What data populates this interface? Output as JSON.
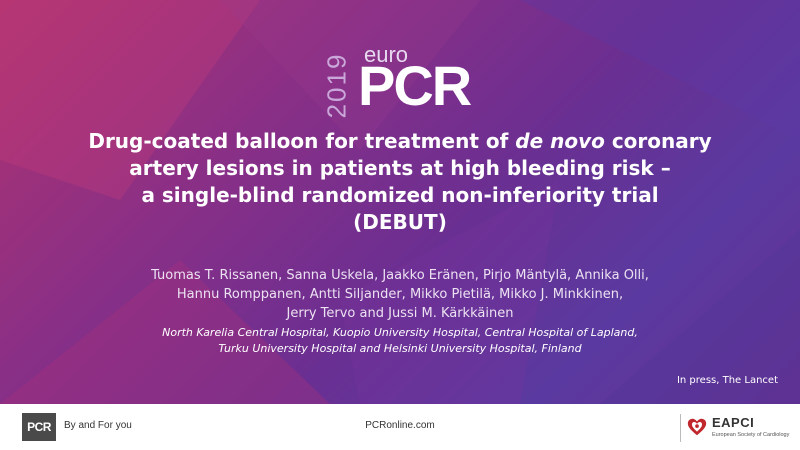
{
  "logo": {
    "year": "2019",
    "euro": "euro",
    "pcr": "PCR"
  },
  "title": {
    "line1_pre": "Drug-coated balloon for treatment of ",
    "line1_italic": "de novo",
    "line1_post": " coronary",
    "line2": "artery lesions in patients at high bleeding risk –",
    "line3": "a single-blind randomized non-inferiority trial",
    "line4": "(DEBUT)"
  },
  "authors": [
    "Tuomas T. Rissanen, Sanna Uskela, Jaakko Eränen, Pirjo Mäntylä, Annika Olli,",
    "Hannu Romppanen, Antti Siljander, Mikko Pietilä, Mikko J. Minkkinen,",
    "Jerry Tervo and Jussi M. Kärkkäinen"
  ],
  "affiliations": [
    "North Karelia Central Hospital, Kuopio University Hospital, Central Hospital of Lapland,",
    "Turku University Hospital and Helsinki University Hospital, Finland"
  ],
  "press_note": "In press, The Lancet",
  "footer": {
    "pcr_badge": "PCR",
    "tagline": "By and For you",
    "website": "PCRonline.com",
    "eapci_name": "EAPCI",
    "eapci_sub": "European Society of Cardiology"
  },
  "colors": {
    "background": "#7a2f8e",
    "accent_pink": "#b0336f",
    "text": "#ffffff",
    "heart": "#c0282d"
  }
}
